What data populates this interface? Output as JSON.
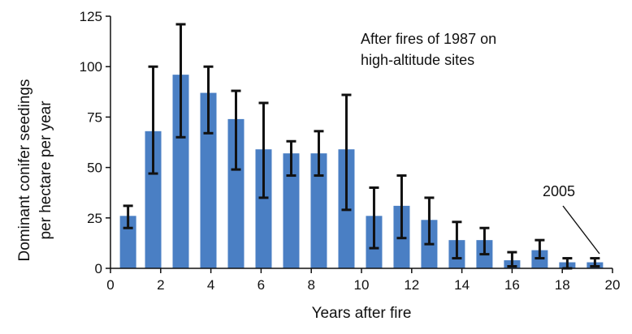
{
  "chart_data": {
    "type": "bar",
    "title": "",
    "xlabel": "Years after fire",
    "ylabel_line1": "Dominant conifer seedings",
    "ylabel_line2": "per hectare per year",
    "xlim": [
      0,
      20
    ],
    "ylim": [
      0,
      125
    ],
    "x_ticks": [
      0,
      2,
      4,
      6,
      8,
      10,
      12,
      14,
      16,
      18,
      20
    ],
    "y_ticks": [
      0,
      25,
      50,
      75,
      100,
      125
    ],
    "grid": false,
    "bar_color": "#4a7fc4",
    "errorbar_color": "#111111",
    "annotation_line1": "After fires of 1987 on",
    "annotation_line2": "high-altitude sites",
    "callout_label": "2005",
    "bars": [
      {
        "x": 0.7,
        "value": 26,
        "err_low": 20,
        "err_high": 31
      },
      {
        "x": 1.7,
        "value": 68,
        "err_low": 47,
        "err_high": 100
      },
      {
        "x": 2.8,
        "value": 96,
        "err_low": 65,
        "err_high": 121
      },
      {
        "x": 3.9,
        "value": 87,
        "err_low": 67,
        "err_high": 100
      },
      {
        "x": 5.0,
        "value": 74,
        "err_low": 49,
        "err_high": 88
      },
      {
        "x": 6.1,
        "value": 59,
        "err_low": 35,
        "err_high": 82
      },
      {
        "x": 7.2,
        "value": 57,
        "err_low": 46,
        "err_high": 63
      },
      {
        "x": 8.3,
        "value": 57,
        "err_low": 46,
        "err_high": 68
      },
      {
        "x": 9.4,
        "value": 59,
        "err_low": 29,
        "err_high": 86
      },
      {
        "x": 10.5,
        "value": 26,
        "err_low": 10,
        "err_high": 40
      },
      {
        "x": 11.6,
        "value": 31,
        "err_low": 15,
        "err_high": 46
      },
      {
        "x": 12.7,
        "value": 24,
        "err_low": 12,
        "err_high": 35
      },
      {
        "x": 13.8,
        "value": 14,
        "err_low": 5,
        "err_high": 23
      },
      {
        "x": 14.9,
        "value": 14,
        "err_low": 7,
        "err_high": 20
      },
      {
        "x": 16.0,
        "value": 4,
        "err_low": 1,
        "err_high": 8
      },
      {
        "x": 17.1,
        "value": 9,
        "err_low": 5,
        "err_high": 14
      },
      {
        "x": 18.2,
        "value": 3,
        "err_low": 0,
        "err_high": 5
      },
      {
        "x": 19.3,
        "value": 3,
        "err_low": 1,
        "err_high": 5
      }
    ]
  }
}
